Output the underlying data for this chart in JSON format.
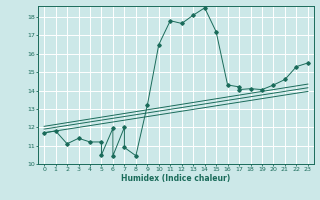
{
  "xlabel": "Humidex (Indice chaleur)",
  "bg_color": "#cce8e8",
  "line_color": "#1a6b5a",
  "grid_color": "#ffffff",
  "xlim": [
    -0.5,
    23.5
  ],
  "ylim": [
    10,
    18.6
  ],
  "yticks": [
    10,
    11,
    12,
    13,
    14,
    15,
    16,
    17,
    18
  ],
  "xticks": [
    0,
    1,
    2,
    3,
    4,
    5,
    6,
    7,
    8,
    9,
    10,
    11,
    12,
    13,
    14,
    15,
    16,
    17,
    18,
    19,
    20,
    21,
    22,
    23
  ],
  "curve_x": [
    0,
    1,
    2,
    3,
    4,
    5,
    5,
    6,
    6,
    7,
    7,
    8,
    9,
    10,
    11,
    12,
    13,
    14,
    15,
    16,
    17,
    17,
    18,
    19,
    20,
    21,
    22,
    23
  ],
  "curve_y": [
    11.7,
    11.8,
    11.1,
    11.4,
    11.2,
    11.2,
    10.5,
    11.95,
    10.45,
    12.0,
    10.9,
    10.45,
    13.2,
    16.5,
    17.8,
    17.65,
    18.1,
    18.5,
    17.2,
    14.3,
    14.2,
    14.05,
    14.1,
    14.05,
    14.3,
    14.6,
    15.3,
    15.5
  ],
  "reg_lines": [
    {
      "x": [
        0,
        23
      ],
      "y": [
        11.7,
        13.95
      ]
    },
    {
      "x": [
        0,
        23
      ],
      "y": [
        11.9,
        14.15
      ]
    },
    {
      "x": [
        0,
        23
      ],
      "y": [
        12.05,
        14.35
      ]
    }
  ]
}
